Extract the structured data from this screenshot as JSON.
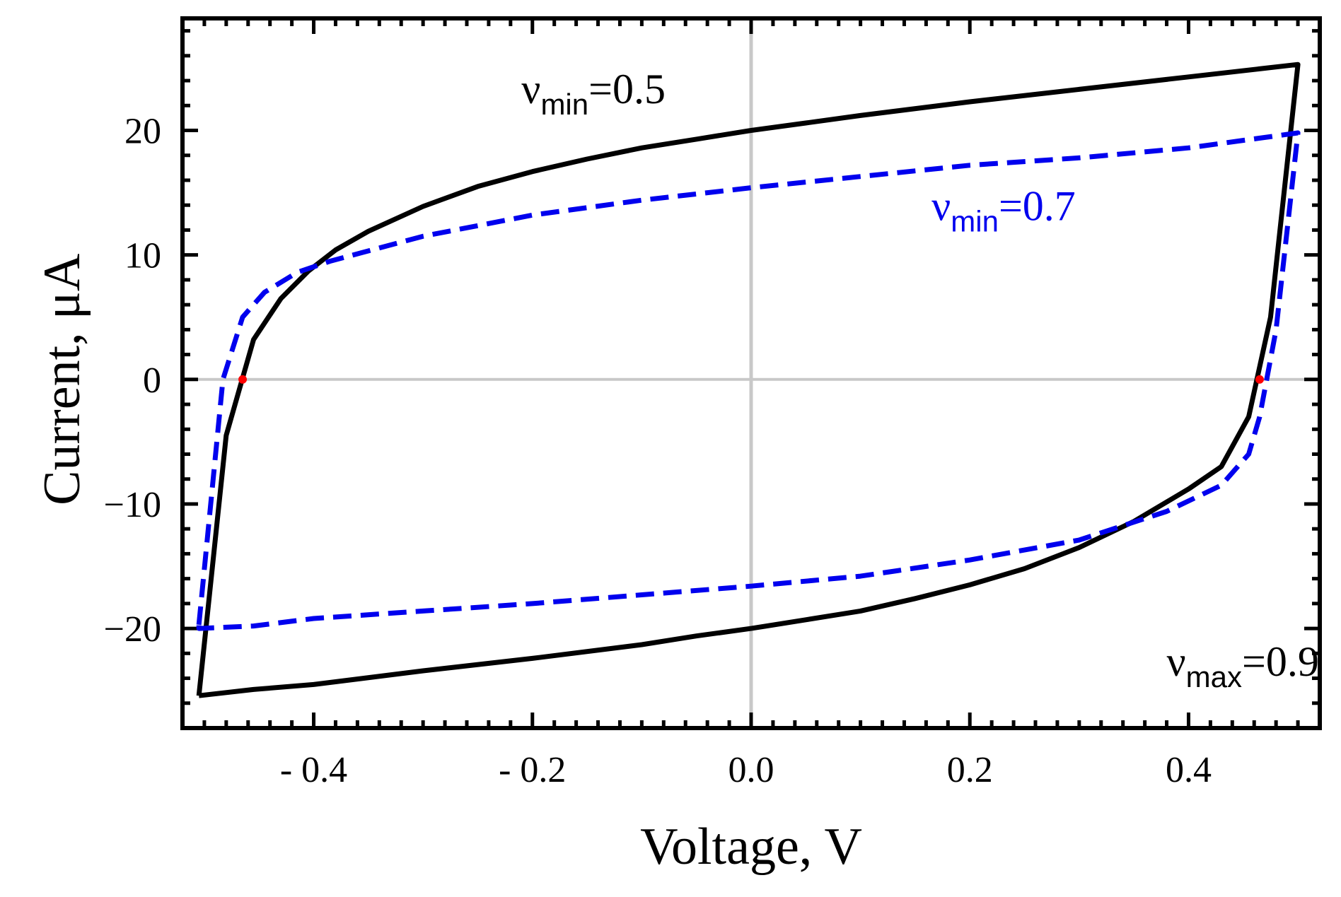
{
  "chart_data": {
    "type": "line",
    "title": "",
    "xlabel": "Voltage, V",
    "ylabel": "Current, μA",
    "xlim": [
      -0.52,
      0.52
    ],
    "ylim": [
      -28,
      29
    ],
    "xticks": [
      -0.4,
      -0.2,
      0.0,
      0.2,
      0.4
    ],
    "xtick_labels": [
      "- 0.4",
      "- 0.2",
      "0.0",
      "0.2",
      "0.4"
    ],
    "yticks": [
      -20,
      -10,
      0,
      10,
      20
    ],
    "ytick_labels": [
      "−20",
      "−10",
      "0",
      "10",
      "20"
    ],
    "grid": false,
    "axis_lines": {
      "x": 0,
      "y": 0,
      "color": "#c8c8c8"
    },
    "colors": {
      "solid": "#000000",
      "dashed": "#0000ee",
      "markers": "#ff0000",
      "frame": "#000000"
    },
    "annotations": [
      {
        "nu": "ν",
        "sub": "min",
        "rest": "=0.5",
        "x": -0.21,
        "y": 22.2,
        "color": "#000000"
      },
      {
        "nu": "ν",
        "sub": "min",
        "rest": "=0.7",
        "x": 0.165,
        "y": 12.8,
        "color": "#0000ee"
      },
      {
        "nu": "ν",
        "sub": "max",
        "rest": "=0.9",
        "x": 0.38,
        "y": -23.8,
        "color": "#000000"
      }
    ],
    "markers": [
      {
        "x": -0.465,
        "y": 0
      },
      {
        "x": 0.465,
        "y": 0
      }
    ],
    "series": [
      {
        "name": "solid (νmin=0.5)",
        "style": "solid",
        "points": [
          [
            -0.505,
            -25.4
          ],
          [
            -0.48,
            -4.5
          ],
          [
            -0.455,
            3.2
          ],
          [
            -0.43,
            6.5
          ],
          [
            -0.405,
            8.7
          ],
          [
            -0.38,
            10.4
          ],
          [
            -0.35,
            11.9
          ],
          [
            -0.3,
            13.9
          ],
          [
            -0.25,
            15.5
          ],
          [
            -0.2,
            16.7
          ],
          [
            -0.15,
            17.7
          ],
          [
            -0.1,
            18.6
          ],
          [
            -0.05,
            19.3
          ],
          [
            0.0,
            20.0
          ],
          [
            0.05,
            20.6
          ],
          [
            0.1,
            21.2
          ],
          [
            0.2,
            22.3
          ],
          [
            0.3,
            23.3
          ],
          [
            0.4,
            24.3
          ],
          [
            0.5,
            25.3
          ],
          [
            0.475,
            5.0
          ],
          [
            0.455,
            -3.0
          ],
          [
            0.43,
            -7.0
          ],
          [
            0.4,
            -8.8
          ],
          [
            0.35,
            -11.4
          ],
          [
            0.3,
            -13.5
          ],
          [
            0.25,
            -15.2
          ],
          [
            0.2,
            -16.5
          ],
          [
            0.15,
            -17.6
          ],
          [
            0.1,
            -18.6
          ],
          [
            0.05,
            -19.3
          ],
          [
            0.0,
            -20.0
          ],
          [
            -0.05,
            -20.6
          ],
          [
            -0.1,
            -21.3
          ],
          [
            -0.2,
            -22.4
          ],
          [
            -0.3,
            -23.4
          ],
          [
            -0.4,
            -24.5
          ],
          [
            -0.455,
            -24.9
          ],
          [
            -0.505,
            -25.4
          ]
        ]
      },
      {
        "name": "dashed (νmin=0.7)",
        "style": "dashed",
        "points": [
          [
            -0.505,
            -19.7
          ],
          [
            -0.483,
            0.0
          ],
          [
            -0.465,
            5.0
          ],
          [
            -0.445,
            7.0
          ],
          [
            -0.415,
            8.6
          ],
          [
            -0.385,
            9.5
          ],
          [
            -0.3,
            11.5
          ],
          [
            -0.2,
            13.2
          ],
          [
            -0.1,
            14.4
          ],
          [
            0.0,
            15.4
          ],
          [
            0.1,
            16.3
          ],
          [
            0.2,
            17.2
          ],
          [
            0.3,
            17.8
          ],
          [
            0.4,
            18.6
          ],
          [
            0.5,
            19.8
          ],
          [
            0.48,
            4.0
          ],
          [
            0.465,
            -3.0
          ],
          [
            0.455,
            -6.0
          ],
          [
            0.43,
            -8.5
          ],
          [
            0.38,
            -10.6
          ],
          [
            0.3,
            -12.9
          ],
          [
            0.2,
            -14.5
          ],
          [
            0.1,
            -15.8
          ],
          [
            0.0,
            -16.6
          ],
          [
            -0.1,
            -17.3
          ],
          [
            -0.2,
            -18.0
          ],
          [
            -0.3,
            -18.6
          ],
          [
            -0.4,
            -19.2
          ],
          [
            -0.455,
            -19.8
          ],
          [
            -0.505,
            -20.0
          ],
          [
            -0.505,
            -19.7
          ]
        ]
      }
    ]
  }
}
